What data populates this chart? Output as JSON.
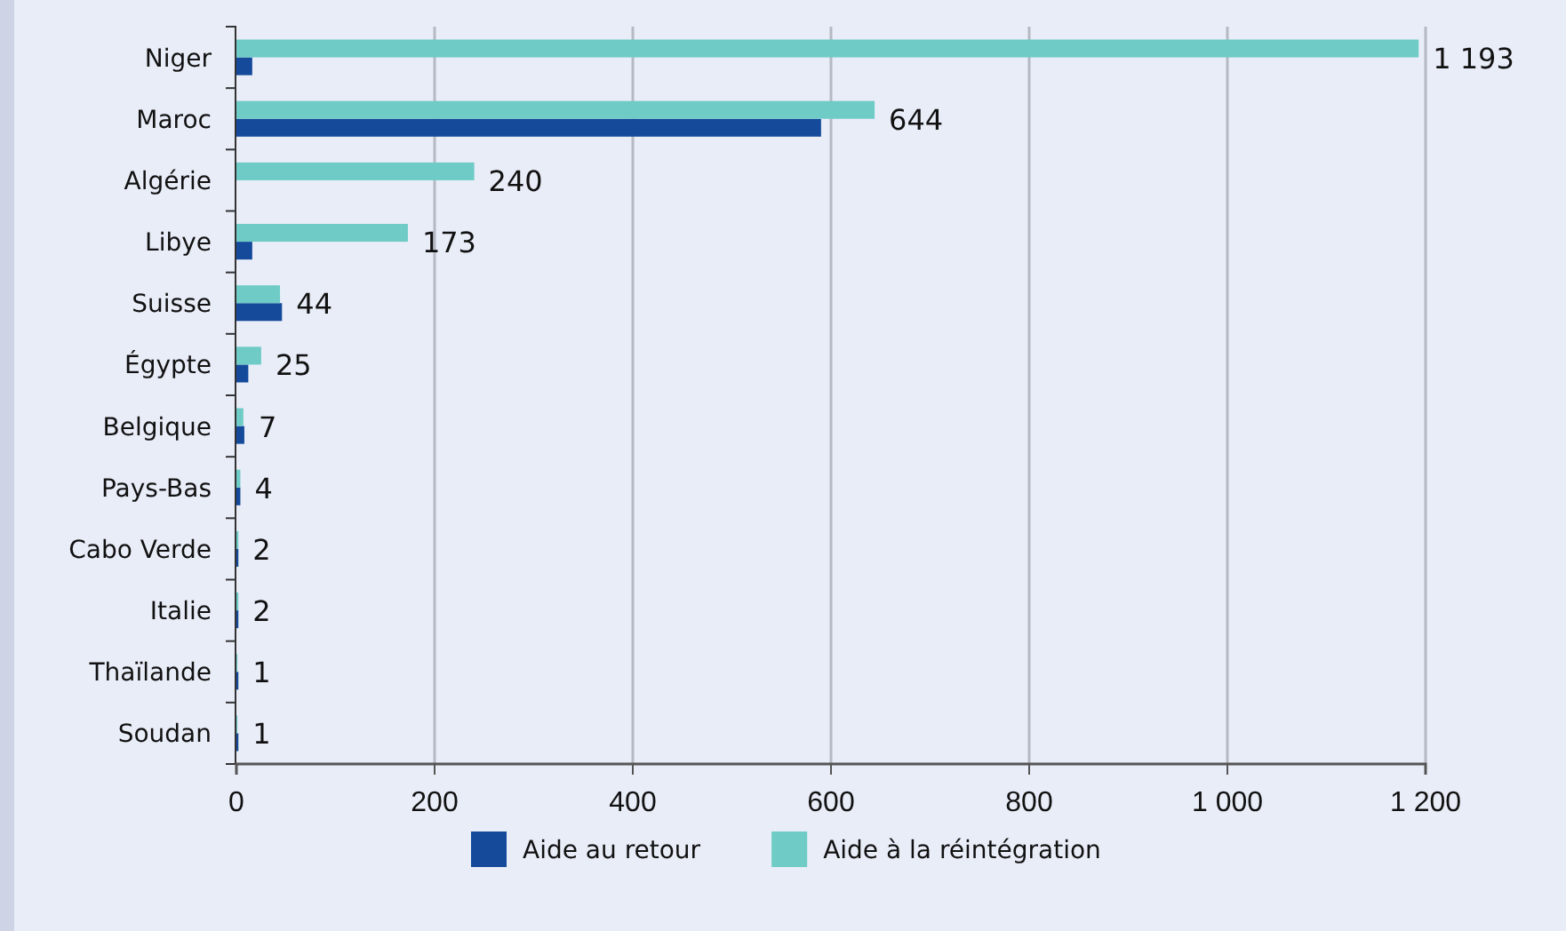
{
  "chart_data": {
    "type": "bar",
    "orientation": "horizontal",
    "categories": [
      "Niger",
      "Maroc",
      "Algérie",
      "Libye",
      "Suisse",
      "Égypte",
      "Belgique",
      "Pays-Bas",
      "Cabo Verde",
      "Italie",
      "Thaïlande",
      "Soudan"
    ],
    "series": [
      {
        "name": "Aide au retour",
        "color": "#154a9a",
        "values": [
          16,
          590,
          null,
          16,
          46,
          12,
          8,
          4,
          2,
          2,
          2,
          2
        ]
      },
      {
        "name": "Aide à la réintégration",
        "color": "#6ecbc6",
        "values": [
          1193,
          644,
          240,
          173,
          44,
          25,
          7,
          4,
          2,
          2,
          1,
          1
        ],
        "value_labels": [
          "1 193",
          "644",
          "240",
          "173",
          "44",
          "25",
          "7",
          "4",
          "2",
          "2",
          "1",
          "1"
        ]
      }
    ],
    "xlim": [
      0,
      1200
    ],
    "xticks": [
      {
        "value": 0,
        "label": "0"
      },
      {
        "value": 200,
        "label": "200"
      },
      {
        "value": 400,
        "label": "400"
      },
      {
        "value": 600,
        "label": "600"
      },
      {
        "value": 800,
        "label": "800"
      },
      {
        "value": 1000,
        "label": "1 000"
      },
      {
        "value": 1200,
        "label": "1 200"
      }
    ],
    "grid": "x",
    "legend": "bottom"
  }
}
